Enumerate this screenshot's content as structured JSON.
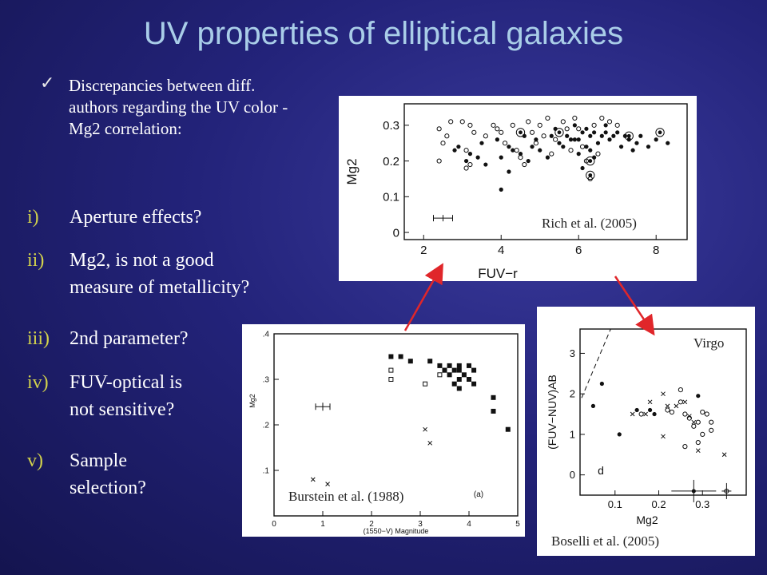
{
  "slide": {
    "title": "UV properties of elliptical galaxies",
    "bullet_intro": "Discrepancies between diff. authors regarding the UV color - Mg2 correlation:",
    "list_items": [
      {
        "num": "i)",
        "lines": [
          "Aperture effects?"
        ]
      },
      {
        "num": "ii)",
        "lines": [
          "Mg2, is not a good",
          "measure of metallicity?"
        ]
      },
      {
        "num": "iii)",
        "lines": [
          "2nd parameter?"
        ]
      },
      {
        "num": "iv)",
        "lines": [
          "FUV-optical is",
          "not sensitive?"
        ]
      },
      {
        "num": "v)",
        "lines": [
          "Sample",
          "selection?"
        ]
      }
    ],
    "arrow_color": "#e0262a",
    "title_color": "#a9cde8"
  },
  "chart_data": [
    {
      "type": "scatter",
      "caption": "Rich et al. (2005)",
      "xlabel": "FUV−r",
      "ylabel": "Mg2",
      "xlim": [
        1.5,
        8.8
      ],
      "ylim": [
        -0.02,
        0.36
      ],
      "xticks": [
        "2",
        "4",
        "6",
        "8"
      ],
      "yticks": [
        "0",
        "0.1",
        "0.2",
        "0.3"
      ],
      "series": [
        {
          "marker": "filled",
          "points": [
            [
              2.9,
              0.24
            ],
            [
              2.8,
              0.23
            ],
            [
              3.1,
              0.2
            ],
            [
              3.2,
              0.22
            ],
            [
              3.4,
              0.21
            ],
            [
              3.5,
              0.25
            ],
            [
              3.6,
              0.19
            ],
            [
              3.9,
              0.26
            ],
            [
              4.0,
              0.21
            ],
            [
              4.2,
              0.24
            ],
            [
              4.2,
              0.17
            ],
            [
              4.3,
              0.23
            ],
            [
              4.5,
              0.22
            ],
            [
              4.6,
              0.27
            ],
            [
              4.7,
              0.2
            ],
            [
              4.8,
              0.24
            ],
            [
              4.9,
              0.26
            ],
            [
              5.0,
              0.23
            ],
            [
              5.2,
              0.21
            ],
            [
              5.3,
              0.27
            ],
            [
              5.4,
              0.29
            ],
            [
              5.5,
              0.25
            ],
            [
              5.6,
              0.24
            ],
            [
              5.7,
              0.27
            ],
            [
              5.8,
              0.26
            ],
            [
              5.9,
              0.3
            ],
            [
              6.0,
              0.26
            ],
            [
              6.1,
              0.28
            ],
            [
              6.2,
              0.29
            ],
            [
              6.3,
              0.27
            ],
            [
              6.4,
              0.28
            ],
            [
              6.5,
              0.25
            ],
            [
              6.6,
              0.27
            ],
            [
              6.7,
              0.28
            ],
            [
              6.8,
              0.26
            ],
            [
              6.9,
              0.27
            ],
            [
              7.0,
              0.28
            ],
            [
              7.1,
              0.24
            ],
            [
              7.2,
              0.27
            ],
            [
              7.3,
              0.26
            ],
            [
              7.5,
              0.25
            ],
            [
              7.6,
              0.27
            ],
            [
              7.8,
              0.24
            ],
            [
              8.0,
              0.26
            ],
            [
              8.3,
              0.25
            ],
            [
              6.0,
              0.22
            ],
            [
              6.2,
              0.24
            ],
            [
              4.0,
              0.12
            ],
            [
              6.4,
              0.21
            ],
            [
              6.1,
              0.18
            ],
            [
              5.9,
              0.26
            ],
            [
              6.7,
              0.3
            ],
            [
              6.3,
              0.23
            ],
            [
              7.4,
              0.23
            ]
          ]
        },
        {
          "marker": "open",
          "points": [
            [
              2.4,
              0.29
            ],
            [
              2.6,
              0.27
            ],
            [
              2.4,
              0.2
            ],
            [
              2.5,
              0.25
            ],
            [
              2.7,
              0.31
            ],
            [
              3.0,
              0.31
            ],
            [
              3.2,
              0.3
            ],
            [
              3.3,
              0.28
            ],
            [
              3.1,
              0.18
            ],
            [
              3.6,
              0.27
            ],
            [
              3.8,
              0.3
            ],
            [
              3.9,
              0.29
            ],
            [
              4.0,
              0.28
            ],
            [
              4.1,
              0.25
            ],
            [
              4.3,
              0.3
            ],
            [
              4.4,
              0.23
            ],
            [
              4.5,
              0.21
            ],
            [
              4.6,
              0.19
            ],
            [
              4.7,
              0.31
            ],
            [
              4.8,
              0.28
            ],
            [
              4.9,
              0.25
            ],
            [
              5.0,
              0.3
            ],
            [
              5.1,
              0.27
            ],
            [
              5.2,
              0.32
            ],
            [
              5.3,
              0.22
            ],
            [
              5.4,
              0.26
            ],
            [
              5.6,
              0.31
            ],
            [
              5.7,
              0.29
            ],
            [
              5.8,
              0.23
            ],
            [
              5.9,
              0.32
            ],
            [
              6.0,
              0.29
            ],
            [
              6.1,
              0.24
            ],
            [
              6.2,
              0.2
            ],
            [
              6.3,
              0.15
            ],
            [
              6.4,
              0.3
            ],
            [
              6.5,
              0.22
            ],
            [
              6.8,
              0.31
            ],
            [
              7.0,
              0.3
            ],
            [
              6.6,
              0.32
            ],
            [
              3.1,
              0.23
            ],
            [
              3.2,
              0.19
            ]
          ]
        },
        {
          "marker": "circled",
          "points": [
            [
              6.3,
              0.2
            ],
            [
              6.3,
              0.16
            ],
            [
              8.1,
              0.28
            ],
            [
              7.3,
              0.27
            ],
            [
              5.5,
              0.28
            ],
            [
              4.5,
              0.28
            ]
          ]
        }
      ]
    },
    {
      "type": "scatter",
      "caption": "Burstein et al. (1988)",
      "xlabel": "(1550−V) Magnitude",
      "ylabel": "Mg2",
      "panel_label": "(a)",
      "xlim": [
        0,
        5
      ],
      "ylim": [
        0,
        0.4
      ],
      "xticks": [
        "0",
        "1",
        "2",
        "3",
        "4",
        "5"
      ],
      "yticks": [
        ".1",
        ".2",
        ".3",
        ".4"
      ],
      "series": [
        {
          "marker": "filled-square",
          "points": [
            [
              2.4,
              0.35
            ],
            [
              2.6,
              0.35
            ],
            [
              2.8,
              0.34
            ],
            [
              3.2,
              0.34
            ],
            [
              3.4,
              0.33
            ],
            [
              3.5,
              0.32
            ],
            [
              3.6,
              0.33
            ],
            [
              3.6,
              0.31
            ],
            [
              3.7,
              0.32
            ],
            [
              3.8,
              0.3
            ],
            [
              3.8,
              0.32
            ],
            [
              3.9,
              0.31
            ],
            [
              4.0,
              0.33
            ],
            [
              4.0,
              0.3
            ],
            [
              4.1,
              0.32
            ],
            [
              3.7,
              0.29
            ],
            [
              3.8,
              0.28
            ],
            [
              4.1,
              0.29
            ],
            [
              4.5,
              0.26
            ],
            [
              4.5,
              0.23
            ],
            [
              4.8,
              0.19
            ],
            [
              3.8,
              0.33
            ]
          ]
        },
        {
          "marker": "open-square",
          "points": [
            [
              2.4,
              0.32
            ],
            [
              2.4,
              0.3
            ],
            [
              3.1,
              0.29
            ],
            [
              3.4,
              0.31
            ],
            [
              3.5,
              0.32
            ]
          ]
        },
        {
          "marker": "cross",
          "points": [
            [
              3.1,
              0.19
            ],
            [
              3.2,
              0.16
            ],
            [
              0.8,
              0.08
            ],
            [
              1.1,
              0.07
            ]
          ]
        }
      ],
      "errorbar_example": {
        "x": 1.0,
        "y": 0.24
      }
    },
    {
      "type": "scatter",
      "caption": "Boselli et al. (2005)",
      "panel_label": "d",
      "annotation": "Virgo",
      "xlabel": "Mg2",
      "ylabel": "(FUV−NUV)AB",
      "xlim": [
        0.02,
        0.4
      ],
      "ylim": [
        -0.5,
        3.6
      ],
      "xticks": [
        "0.1",
        "0.2",
        "0.3"
      ],
      "yticks": [
        "0",
        "1",
        "2",
        "3"
      ],
      "series": [
        {
          "marker": "filled",
          "points": [
            [
              0.05,
              1.7
            ],
            [
              0.07,
              2.25
            ],
            [
              0.11,
              1.0
            ],
            [
              0.15,
              1.6
            ],
            [
              0.18,
              1.6
            ],
            [
              0.19,
              1.5
            ],
            [
              0.29,
              1.95
            ],
            [
              0.28,
              -0.4
            ]
          ]
        },
        {
          "marker": "open",
          "points": [
            [
              0.16,
              1.5
            ],
            [
              0.22,
              1.6
            ],
            [
              0.23,
              1.55
            ],
            [
              0.25,
              1.8
            ],
            [
              0.25,
              2.1
            ],
            [
              0.26,
              1.5
            ],
            [
              0.27,
              1.4
            ],
            [
              0.28,
              1.2
            ],
            [
              0.29,
              1.3
            ],
            [
              0.29,
              0.8
            ],
            [
              0.3,
              1.0
            ],
            [
              0.31,
              1.5
            ],
            [
              0.32,
              1.3
            ],
            [
              0.32,
              1.1
            ],
            [
              0.26,
              0.7
            ],
            [
              0.3,
              1.55
            ]
          ]
        },
        {
          "marker": "cross",
          "points": [
            [
              0.14,
              1.5
            ],
            [
              0.17,
              1.5
            ],
            [
              0.18,
              1.8
            ],
            [
              0.21,
              2.0
            ],
            [
              0.22,
              1.7
            ],
            [
              0.24,
              1.7
            ],
            [
              0.26,
              1.8
            ],
            [
              0.27,
              1.45
            ],
            [
              0.28,
              1.3
            ],
            [
              0.29,
              0.6
            ],
            [
              0.35,
              0.5
            ],
            [
              0.21,
              0.95
            ]
          ]
        }
      ]
    }
  ]
}
